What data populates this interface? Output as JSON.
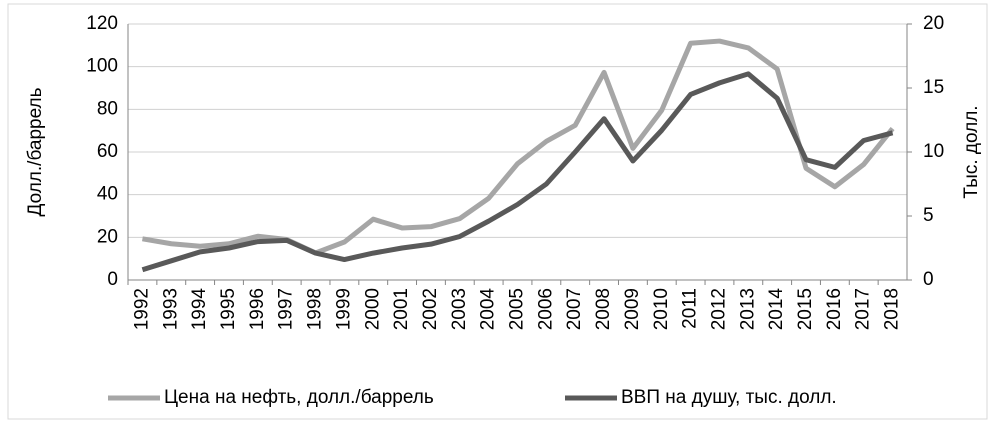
{
  "chart_data": {
    "type": "line",
    "categories": [
      "1992",
      "1993",
      "1994",
      "1995",
      "1996",
      "1997",
      "1998",
      "1999",
      "2000",
      "2001",
      "2002",
      "2003",
      "2004",
      "2005",
      "2006",
      "2007",
      "2008",
      "2009",
      "2010",
      "2011",
      "2012",
      "2013",
      "2014",
      "2015",
      "2016",
      "2017",
      "2018"
    ],
    "series": [
      {
        "name": "Цена на нефть, долл./баррель",
        "color": "#a6a6a6",
        "axis": "y",
        "values": [
          19.3,
          17,
          15.8,
          17,
          20.5,
          19,
          12.7,
          17.8,
          28.5,
          24.4,
          25,
          28.8,
          38.3,
          54.5,
          65,
          72.5,
          97.3,
          61.7,
          79.6,
          111,
          112,
          108.8,
          98.9,
          52.4,
          43.7,
          54.2,
          71
        ]
      },
      {
        "name": "ВВП на душу, тыс. долл.",
        "color": "#595959",
        "axis": "y2",
        "values": [
          0.8,
          1.5,
          2.2,
          2.5,
          3.0,
          3.1,
          2.1,
          1.6,
          2.1,
          2.5,
          2.8,
          3.4,
          4.6,
          5.9,
          7.5,
          10,
          12.6,
          9.3,
          11.7,
          14.5,
          15.4,
          16.1,
          14.2,
          9.4,
          8.8,
          10.9,
          11.5
        ]
      }
    ],
    "ylabel": "Долл./баррель",
    "y2label": "Тыс. долл.",
    "ylim": [
      0,
      120
    ],
    "yticks": [
      0,
      20,
      40,
      60,
      80,
      100,
      120
    ],
    "y2lim": [
      0,
      20
    ],
    "y2ticks": [
      0,
      5,
      10,
      15,
      20
    ],
    "grid": true,
    "legend": "bottom"
  }
}
